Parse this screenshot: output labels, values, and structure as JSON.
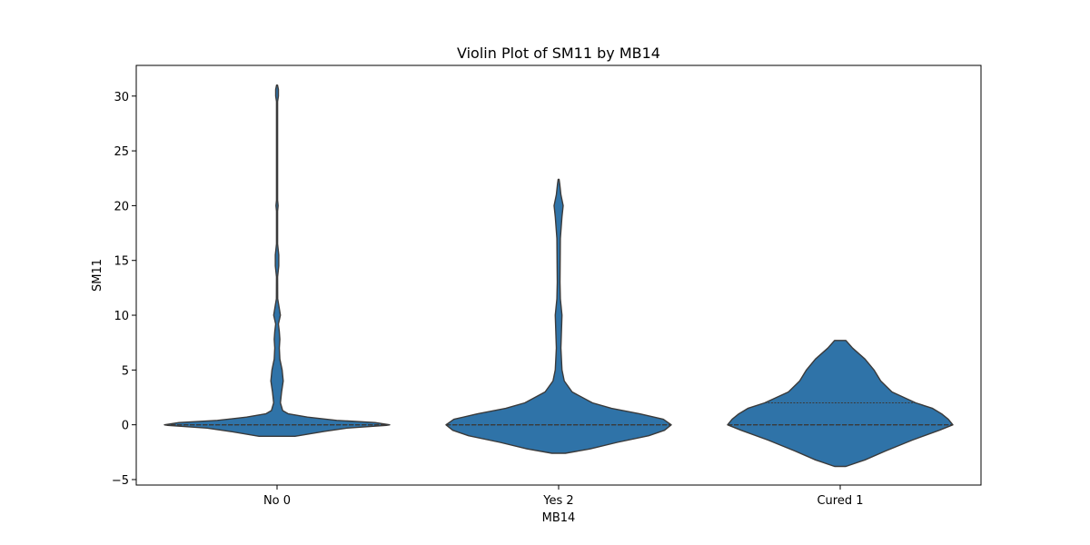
{
  "chart_data": {
    "type": "violin",
    "title": "Violin Plot of SM11 by MB14",
    "xlabel": "MB14",
    "ylabel": "SM11",
    "ylim": [
      -5.5,
      32.8
    ],
    "yticks": [
      -5,
      0,
      5,
      10,
      15,
      20,
      25,
      30
    ],
    "grid": false,
    "inner": "quartile",
    "color": "#2f73a8",
    "edge_color": "#3a3a3a",
    "categories": [
      "No 0",
      "Yes 2",
      "Cured 1"
    ],
    "violins": [
      {
        "category": "No 0",
        "quartiles": [
          0,
          0,
          0
        ],
        "profile": [
          [
            -1.05,
            0.16
          ],
          [
            -0.6,
            0.42
          ],
          [
            -0.3,
            0.62
          ],
          [
            -0.05,
            0.97
          ],
          [
            0.0,
            1.0
          ],
          [
            0.2,
            0.87
          ],
          [
            0.4,
            0.53
          ],
          [
            0.7,
            0.27
          ],
          [
            1.0,
            0.1
          ],
          [
            1.3,
            0.05
          ],
          [
            2.0,
            0.03
          ],
          [
            3.0,
            0.04
          ],
          [
            4.0,
            0.055
          ],
          [
            5.0,
            0.045
          ],
          [
            6.0,
            0.025
          ],
          [
            7.0,
            0.02
          ],
          [
            7.8,
            0.025
          ],
          [
            8.5,
            0.02
          ],
          [
            9.2,
            0.012
          ],
          [
            10.0,
            0.03
          ],
          [
            10.6,
            0.02
          ],
          [
            11.5,
            0.006
          ],
          [
            13.5,
            0.005
          ],
          [
            14.5,
            0.015
          ],
          [
            15.5,
            0.015
          ],
          [
            16.5,
            0.005
          ],
          [
            19.5,
            0.005
          ],
          [
            20.0,
            0.01
          ],
          [
            20.5,
            0.005
          ],
          [
            29.5,
            0.005
          ],
          [
            30.0,
            0.012
          ],
          [
            30.6,
            0.012
          ],
          [
            31.0,
            0.004
          ]
        ]
      },
      {
        "category": "Yes 2",
        "quartiles": [
          0,
          0,
          0
        ],
        "profile": [
          [
            -2.6,
            0.06
          ],
          [
            -2.2,
            0.28
          ],
          [
            -1.6,
            0.52
          ],
          [
            -1.0,
            0.8
          ],
          [
            -0.5,
            0.94
          ],
          [
            0.0,
            1.0
          ],
          [
            0.5,
            0.93
          ],
          [
            1.0,
            0.72
          ],
          [
            1.5,
            0.47
          ],
          [
            2.0,
            0.3
          ],
          [
            3.0,
            0.12
          ],
          [
            4.0,
            0.05
          ],
          [
            5.0,
            0.03
          ],
          [
            7.0,
            0.02
          ],
          [
            10.0,
            0.03
          ],
          [
            11.5,
            0.015
          ],
          [
            13.0,
            0.012
          ],
          [
            17.0,
            0.015
          ],
          [
            19.0,
            0.03
          ],
          [
            20.0,
            0.04
          ],
          [
            21.0,
            0.02
          ],
          [
            22.0,
            0.01
          ],
          [
            22.4,
            0.004
          ]
        ]
      },
      {
        "category": "Cured 1",
        "quartiles": [
          0,
          0,
          2
        ],
        "profile": [
          [
            -3.8,
            0.05
          ],
          [
            -3.2,
            0.22
          ],
          [
            -2.4,
            0.4
          ],
          [
            -1.4,
            0.64
          ],
          [
            -0.5,
            0.88
          ],
          [
            0.0,
            1.0
          ],
          [
            0.5,
            0.96
          ],
          [
            1.0,
            0.9
          ],
          [
            1.5,
            0.82
          ],
          [
            2.0,
            0.67
          ],
          [
            3.0,
            0.46
          ],
          [
            4.0,
            0.36
          ],
          [
            5.0,
            0.3
          ],
          [
            6.0,
            0.22
          ],
          [
            7.0,
            0.11
          ],
          [
            7.7,
            0.05
          ]
        ]
      }
    ]
  }
}
